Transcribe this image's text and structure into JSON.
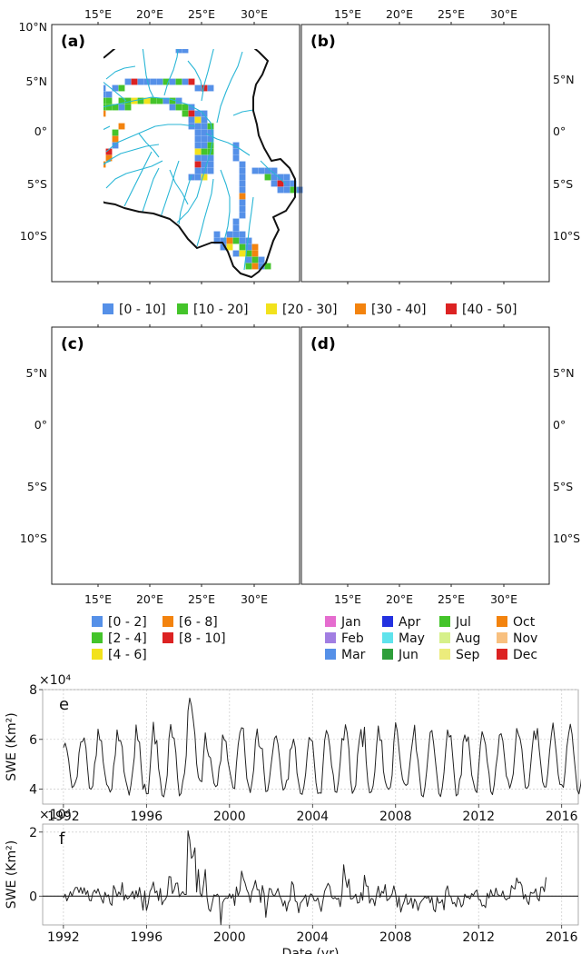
{
  "maps": {
    "panels": [
      {
        "label": "(a)",
        "legend_group": 0
      },
      {
        "label": "(b)",
        "legend_group": 0
      },
      {
        "label": "(c)",
        "legend_group": 1
      },
      {
        "label": "(d)",
        "legend_group": 2
      }
    ],
    "lon_ticks": [
      "15°E",
      "20°E",
      "25°E",
      "30°E"
    ],
    "lat_ticks_left_top": [
      "10°N",
      "5°N",
      "0°",
      "5°S",
      "10°S"
    ],
    "lat_ticks": [
      "5°N",
      "0°",
      "5°S",
      "10°S"
    ],
    "river_color": "#29b6d6",
    "boundary_color": "#111111"
  },
  "legends": {
    "ab": [
      {
        "label": "[0 - 10]",
        "color": "#5590e8"
      },
      {
        "label": "[10 - 20]",
        "color": "#44c42a"
      },
      {
        "label": "[20 - 30]",
        "color": "#f2e21c"
      },
      {
        "label": "[30 - 40]",
        "color": "#f3830e"
      },
      {
        "label": "[40 - 50]",
        "color": "#dc2222"
      }
    ],
    "c": [
      {
        "label": "[0 - 2]",
        "color": "#5590e8"
      },
      {
        "label": "[2 - 4]",
        "color": "#44c42a"
      },
      {
        "label": "[4 - 6]",
        "color": "#f2e21c"
      },
      {
        "label": "[6 - 8]",
        "color": "#f3830e"
      },
      {
        "label": "[8 - 10]",
        "color": "#dc2222"
      }
    ],
    "d": [
      {
        "label": "Jan",
        "color": "#e56ccf"
      },
      {
        "label": "Feb",
        "color": "#a17ee2"
      },
      {
        "label": "Mar",
        "color": "#5590e8"
      },
      {
        "label": "Apr",
        "color": "#2331e0"
      },
      {
        "label": "May",
        "color": "#5fe3ec"
      },
      {
        "label": "Jun",
        "color": "#2e9e3a"
      },
      {
        "label": "Jul",
        "color": "#44c42a"
      },
      {
        "label": "Aug",
        "color": "#d6f08a"
      },
      {
        "label": "Sep",
        "color": "#ecec7c"
      },
      {
        "label": "Oct",
        "color": "#f3830e"
      },
      {
        "label": "Nov",
        "color": "#f8c07f"
      },
      {
        "label": "Dec",
        "color": "#dc2222"
      }
    ]
  },
  "chart_data": [
    {
      "type": "line",
      "label": "e",
      "ylabel": "SWE (Km²)",
      "multiplier": "×10⁴",
      "x_start": 1992.0,
      "x_step_months": 1,
      "xlim": [
        1991.0,
        2016.8
      ],
      "ylim": [
        3.4,
        8.0
      ],
      "yticks": [
        4,
        6,
        8
      ],
      "xticks": [
        1992,
        1996,
        2000,
        2004,
        2008,
        2012,
        2016
      ],
      "grid": true,
      "values": [
        5.67,
        5.85,
        5.59,
        5.18,
        4.55,
        4.06,
        4.13,
        4.29,
        4.51,
        5.45,
        5.89,
        5.91,
        6.06,
        5.67,
        4.81,
        4.04,
        4.0,
        4.13,
        5.01,
        5.36,
        6.41,
        5.98,
        5.94,
        5.09,
        4.61,
        4.19,
        4.09,
        3.88,
        4.02,
        4.93,
        5.38,
        6.38,
        5.94,
        5.95,
        5.69,
        4.71,
        4.36,
        4.07,
        3.76,
        4.15,
        4.71,
        5.29,
        6.58,
        5.97,
        5.88,
        4.84,
        4.0,
        4.2,
        3.81,
        3.82,
        4.73,
        5.79,
        6.69,
        5.81,
        5.96,
        4.83,
        4.38,
        3.76,
        3.69,
        4.06,
        4.56,
        6.03,
        6.6,
        6.09,
        6.04,
        5.47,
        4.43,
        3.73,
        3.83,
        4.31,
        4.64,
        5.35,
        7.14,
        7.66,
        7.35,
        6.81,
        6.19,
        5.02,
        4.48,
        4.34,
        4.3,
        5.37,
        6.26,
        5.62,
        5.33,
        5.26,
        4.74,
        4.24,
        4.1,
        4.16,
        4.87,
        5.15,
        6.18,
        5.98,
        5.92,
        5.16,
        4.78,
        4.41,
        4.06,
        4.02,
        5.02,
        5.78,
        6.27,
        6.47,
        6.44,
        5.35,
        4.43,
        4.14,
        3.86,
        4.27,
        4.79,
        5.93,
        6.42,
        5.74,
        5.65,
        5.63,
        4.67,
        3.9,
        3.93,
        4.34,
        4.96,
        5.51,
        6.04,
        6.14,
        5.82,
        5.2,
        4.42,
        3.96,
        4.04,
        4.35,
        4.4,
        5.57,
        5.68,
        6.01,
        5.68,
        4.65,
        4.24,
        3.83,
        3.79,
        4.1,
        4.61,
        5.46,
        6.08,
        5.98,
        5.92,
        5.09,
        4.26,
        3.83,
        3.85,
        3.84,
        4.93,
        5.96,
        6.36,
        6.17,
        5.7,
        4.95,
        4.57,
        3.9,
        3.87,
        4.32,
        5.09,
        6.04,
        5.97,
        6.59,
        6.27,
        5.62,
        4.36,
        3.83,
        3.96,
        4.16,
        5.37,
        5.96,
        6.4,
        5.71,
        6.49,
        5.12,
        4.27,
        3.85,
        3.89,
        4.13,
        4.7,
        5.73,
        6.54,
        5.96,
        5.96,
        4.72,
        4.31,
        4.08,
        3.99,
        4.08,
        4.56,
        5.89,
        6.67,
        6.32,
        5.59,
        4.9,
        4.41,
        4.23,
        4.15,
        4.21,
        4.84,
        5.5,
        6.03,
        6.57,
        5.56,
        5.14,
        4.42,
        3.76,
        3.69,
        4.1,
        4.75,
        5.54,
        6.28,
        6.36,
        5.83,
        5.15,
        4.49,
        3.83,
        3.7,
        4.07,
        4.68,
        5.59,
        6.38,
        6.09,
        6.16,
        5.33,
        4.49,
        3.73,
        3.8,
        4.37,
        4.58,
        5.91,
        6.18,
        5.91,
        6.1,
        5.37,
        4.57,
        4.27,
        3.96,
        3.86,
        4.84,
        5.76,
        6.31,
        6.08,
        5.79,
        5.09,
        4.64,
        3.91,
        3.78,
        4.17,
        4.91,
        5.41,
        6.17,
        6.23,
        5.94,
        5.25,
        4.53,
        4.36,
        4.04,
        4.28,
        4.61,
        5.5,
        6.44,
        6.2,
        6.02,
        5.61,
        4.8,
        4.06,
        4.04,
        4.15,
        4.9,
        5.67,
        6.34,
        5.99,
        6.44,
        5.61,
        4.95,
        4.29,
        4.09,
        4.09,
        4.65,
        5.51,
        6.15,
        6.66,
        6.02,
        5.37,
        4.59,
        4.19,
        4.18,
        4.07,
        4.72,
        5.69,
        6.21,
        6.61,
        6.21,
        5.42,
        4.71,
        3.97,
        3.81,
        4.18,
        4.77,
        5.68,
        6.27
      ]
    },
    {
      "type": "line",
      "label": "f",
      "ylabel": "SWE (Km²)",
      "multiplier": "×10⁴",
      "x_start": 1992.0,
      "x_step_months": 1,
      "xlim": [
        1991.0,
        2016.8
      ],
      "ylim": [
        -0.9,
        2.25
      ],
      "yticks": [
        0,
        2
      ],
      "xticks": [
        1992,
        1996,
        2000,
        2004,
        2008,
        2012,
        2016
      ],
      "xlabel": "Date (yr)",
      "grid": true,
      "values": [
        -0.05,
        0.06,
        -0.15,
        -0.02,
        0.14,
        0.0,
        0.16,
        0.27,
        0.27,
        0.11,
        0.27,
        0.08,
        0.26,
        0.05,
        0.17,
        -0.13,
        -0.15,
        0.1,
        0.19,
        0.09,
        0.23,
        0.06,
        -0.09,
        -0.22,
        0.12,
        -0.02,
        0.04,
        -0.22,
        -0.29,
        0.33,
        0.2,
        -0.02,
        0.13,
        0.04,
        0.42,
        -0.13,
        0.04,
        -0.09,
        -0.04,
        0.04,
        0.15,
        -0.09,
        0.17,
        -0.03,
        0.27,
        -0.06,
        -0.44,
        0.16,
        -0.45,
        -0.23,
        0.14,
        0.25,
        0.44,
        0.1,
        0.16,
        -0.14,
        0.24,
        -0.27,
        -0.15,
        -0.1,
        0.03,
        0.61,
        0.6,
        0.08,
        0.2,
        0.4,
        0.41,
        -0.02,
        0.07,
        0.14,
        0.05,
        0.05,
        2.04,
        1.75,
        1.18,
        1.26,
        1.51,
        0.13,
        0.83,
        0.09,
        -0.02,
        0.36,
        0.83,
        -0.04,
        -0.41,
        -0.48,
        -0.22,
        0.04,
        0.01,
        0.06,
        -0.03,
        -0.89,
        -0.21,
        -0.1,
        -0.05,
        -0.07,
        0.07,
        -0.07,
        0.06,
        -0.29,
        0.29,
        0.01,
        0.17,
        0.78,
        0.55,
        0.41,
        0.2,
        0.08,
        -0.2,
        0.14,
        0.28,
        0.49,
        0.2,
        0.2,
        -0.2,
        0.33,
        0.08,
        -0.66,
        -0.17,
        0.24,
        0.22,
        0.05,
        0.0,
        0.11,
        0.24,
        0.01,
        -0.11,
        -0.31,
        -0.15,
        -0.47,
        -0.21,
        -0.12,
        0.45,
        0.35,
        -0.15,
        -0.19,
        -0.52,
        -0.22,
        -0.15,
        -0.07,
        0.04,
        -0.32,
        -0.05,
        0.07,
        0.02,
        -0.14,
        -0.15,
        -0.05,
        -0.28,
        -0.48,
        -0.15,
        0.16,
        0.28,
        0.4,
        0.3,
        -0.03,
        -0.08,
        -0.04,
        -0.1,
        -0.06,
        -0.33,
        0.07,
        0.98,
        0.55,
        0.27,
        0.53,
        -0.09,
        -0.08,
        -0.03,
        0.06,
        -0.22,
        -0.2,
        0.11,
        -0.13,
        0.65,
        0.32,
        0.31,
        -0.22,
        -0.07,
        -0.1,
        -0.3,
        0.05,
        0.31,
        -0.04,
        0.15,
        0.09,
        0.36,
        -0.14,
        -0.1,
        -0.03,
        0.07,
        0.32,
        0.07,
        -0.34,
        -0.03,
        -0.5,
        -0.3,
        -0.16,
        0.06,
        -0.26,
        -0.21,
        -0.05,
        -0.38,
        -0.09,
        -0.2,
        -0.45,
        -0.24,
        -0.15,
        -0.09,
        -0.01,
        -0.07,
        -0.01,
        -0.21,
        -0.03,
        -0.42,
        -0.49,
        -0.03,
        -0.22,
        -0.2,
        -0.11,
        -0.43,
        0.17,
        0.32,
        0.02,
        -0.02,
        -0.24,
        -0.2,
        -0.33,
        -0.03,
        -0.12,
        -0.34,
        -0.26,
        0.06,
        -0.04,
        -0.03,
        -0.09,
        0.08,
        0.02,
        0.14,
        0.19,
        -0.11,
        -0.12,
        -0.31,
        -0.28,
        -0.36,
        0.09,
        -0.06,
        0.2,
        0.03,
        0.0,
        0.25,
        0.05,
        0.02,
        -0.0,
        0.16,
        -0.06,
        -0.12,
        -0.06,
        -0.06,
        0.33,
        0.25,
        0.22,
        0.57,
        0.41,
        0.44,
        0.33,
        -0.09,
        0.05,
        -0.16,
        -0.26,
        0.12,
        0.09,
        0.1,
        0.23,
        -0.07,
        -0.15,
        0.28,
        0.29,
        0.14,
        0.59
      ]
    }
  ]
}
